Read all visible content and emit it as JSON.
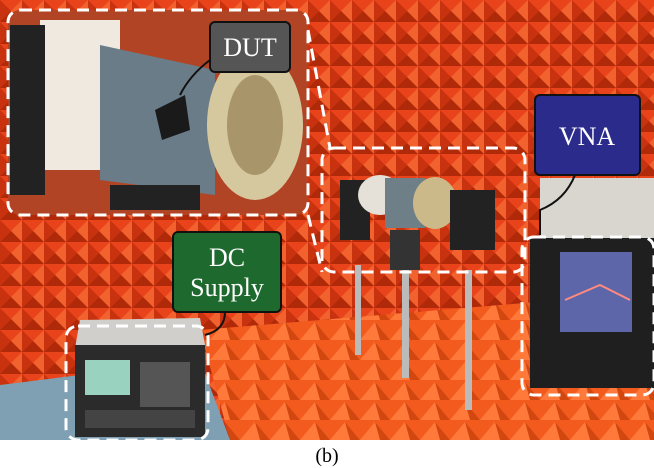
{
  "labels": {
    "dut": "DUT",
    "vna": "VNA",
    "dc_supply": [
      "DC",
      "Supply"
    ]
  },
  "caption": "(b)"
}
